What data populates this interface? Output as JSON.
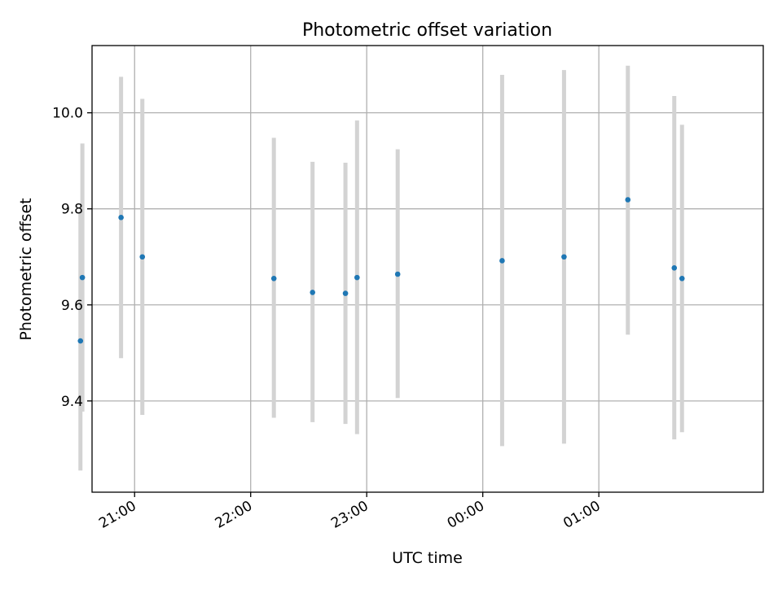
{
  "chart_data": {
    "type": "scatter",
    "title": "Photometric offset variation",
    "xlabel": "UTC time",
    "ylabel": "Photometric offset",
    "x_is_time": true,
    "grid": true,
    "xlim": [
      "20:38",
      "02:25"
    ],
    "ylim": [
      9.21,
      10.14
    ],
    "x_ticks": [
      "21:00",
      "22:00",
      "23:00",
      "00:00",
      "01:00"
    ],
    "y_ticks": [
      9.4,
      9.6,
      9.8,
      10.0
    ],
    "y_tick_labels": [
      "9.4",
      "9.6",
      "9.8",
      "10.0"
    ],
    "point_color": "#1f77b4",
    "errorbar_color": "#d3d3d3",
    "series": [
      {
        "points": [
          {
            "t": "20:32",
            "y": 9.525,
            "ylow": 9.255,
            "yhigh": 9.795
          },
          {
            "t": "20:33",
            "y": 9.657,
            "ylow": 9.378,
            "yhigh": 9.936
          },
          {
            "t": "20:53",
            "y": 9.782,
            "ylow": 9.489,
            "yhigh": 10.075
          },
          {
            "t": "21:04",
            "y": 9.7,
            "ylow": 9.371,
            "yhigh": 10.029
          },
          {
            "t": "22:12",
            "y": 9.655,
            "ylow": 9.365,
            "yhigh": 9.948
          },
          {
            "t": "22:32",
            "y": 9.626,
            "ylow": 9.356,
            "yhigh": 9.898
          },
          {
            "t": "22:49",
            "y": 9.624,
            "ylow": 9.352,
            "yhigh": 9.896
          },
          {
            "t": "22:55",
            "y": 9.657,
            "ylow": 9.331,
            "yhigh": 9.984
          },
          {
            "t": "23:16",
            "y": 9.664,
            "ylow": 9.406,
            "yhigh": 9.924
          },
          {
            "t": "00:10",
            "y": 9.692,
            "ylow": 9.306,
            "yhigh": 10.079
          },
          {
            "t": "00:42",
            "y": 9.7,
            "ylow": 9.311,
            "yhigh": 10.089
          },
          {
            "t": "01:15",
            "y": 9.819,
            "ylow": 9.538,
            "yhigh": 10.098
          },
          {
            "t": "01:39",
            "y": 9.677,
            "ylow": 9.32,
            "yhigh": 10.035
          },
          {
            "t": "01:43",
            "y": 9.655,
            "ylow": 9.335,
            "yhigh": 9.975
          }
        ]
      }
    ]
  }
}
